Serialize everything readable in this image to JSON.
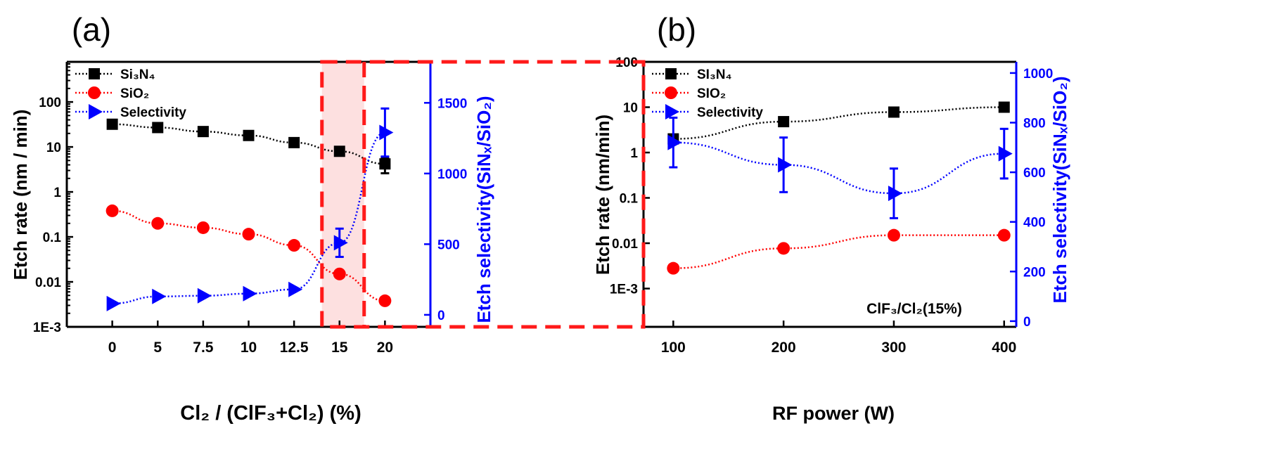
{
  "colors": {
    "si3n4": "#000000",
    "sio2": "#ff0000",
    "selectivity": "#0000ff",
    "highlight_fill": "#fde0e0",
    "highlight_stroke": "#ff1a1a"
  },
  "chart_data": [
    {
      "panel_label": "(a)",
      "type": "line",
      "xlabel": "Cl₂ / (ClF₃+Cl₂) (%)",
      "ylabel": "Etch rate (nm / min)",
      "ylabel_right": "Etch selectivity(SiNₓ/SiO₂)",
      "x_scale": "categorical",
      "categories": [
        "0",
        "5",
        "7.5",
        "10",
        "12.5",
        "15",
        "20"
      ],
      "y_scale": "log",
      "ylim": [
        0.001,
        780
      ],
      "yticks": [
        "1E-3",
        "0.01",
        "0.1",
        "1",
        "10",
        "100"
      ],
      "ylim_right": [
        -85,
        1790
      ],
      "yticks_right": [
        "0",
        "500",
        "1000",
        "1500"
      ],
      "legend_position": "top-left",
      "highlight_category": "15",
      "series": [
        {
          "name": "Si₃N₄",
          "axis": "left",
          "marker": "square",
          "values": [
            32,
            27,
            22,
            18,
            12.5,
            8,
            4.2
          ],
          "errors": [
            0,
            0,
            0,
            0,
            0,
            0,
            1.6
          ]
        },
        {
          "name": "SiO₂",
          "axis": "left",
          "marker": "circle",
          "values": [
            0.38,
            0.2,
            0.16,
            0.115,
            0.065,
            0.015,
            0.0038
          ],
          "errors": [
            0,
            0,
            0,
            0,
            0,
            0,
            0
          ]
        },
        {
          "name": "Selectivity",
          "axis": "right",
          "marker": "triangle-right",
          "values": [
            80,
            130,
            135,
            150,
            180,
            510,
            1290
          ],
          "errors": [
            0,
            0,
            0,
            0,
            0,
            100,
            170
          ]
        }
      ]
    },
    {
      "panel_label": "(b)",
      "type": "line",
      "xlabel": "RF power (W)",
      "ylabel": "Etch rate (nm/min)",
      "ylabel_right": "Etch selectivity(SiNₓ/SiO₂)",
      "x": [
        100,
        200,
        300,
        400
      ],
      "xlim": [
        73,
        411
      ],
      "xticks": [
        "100",
        "200",
        "300",
        "400"
      ],
      "y_scale": "log",
      "ylim": [
        0.000143,
        100
      ],
      "yticks": [
        "1E-3",
        "0.01",
        "0.1",
        "1",
        "10",
        "100"
      ],
      "ylim_right": [
        -23,
        1045
      ],
      "yticks_right": [
        "0",
        "200",
        "400",
        "600",
        "800",
        "1000"
      ],
      "legend_position": "top-left",
      "annotation": "ClF₃/Cl₂(15%)",
      "series": [
        {
          "name": "SI₃N₄",
          "axis": "left",
          "marker": "square",
          "values": [
            2.0,
            4.8,
            7.8,
            10
          ],
          "errors": [
            0,
            0,
            0,
            0
          ]
        },
        {
          "name": "SIO₂",
          "axis": "left",
          "marker": "circle",
          "values": [
            0.0028,
            0.0077,
            0.015,
            0.015
          ],
          "errors": [
            0,
            0,
            0,
            0
          ]
        },
        {
          "name": "Selectivity",
          "axis": "right",
          "marker": "triangle-right",
          "values": [
            720,
            630,
            515,
            675
          ],
          "errors": [
            100,
            110,
            100,
            100
          ]
        }
      ]
    }
  ]
}
